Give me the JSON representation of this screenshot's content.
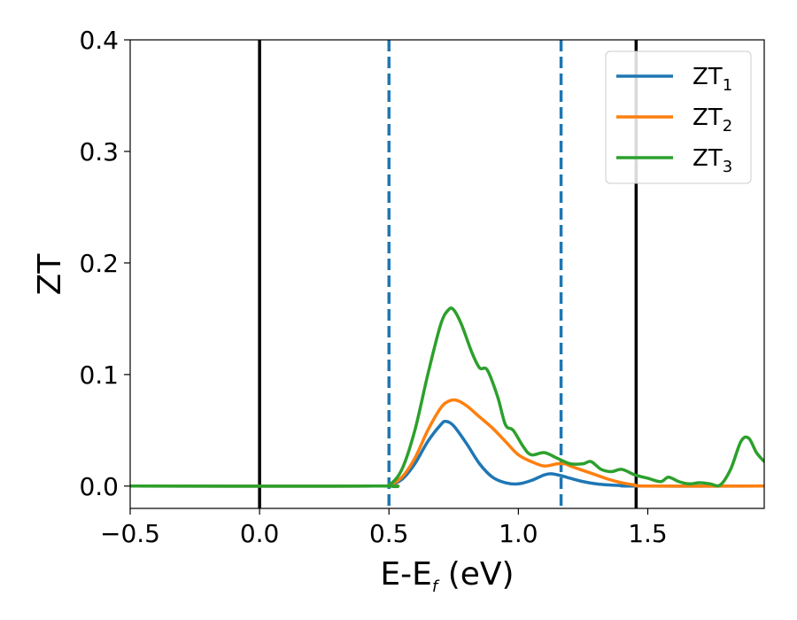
{
  "chart_data": {
    "type": "line",
    "xlabel": "E-E",
    "xlabel_sub": "f",
    "xlabel_unit": " (eV)",
    "ylabel": "ZT",
    "xlim": [
      -0.5,
      1.95
    ],
    "ylim": [
      -0.02,
      0.4
    ],
    "x_ticks": [
      -0.5,
      0.0,
      0.5,
      1.0,
      1.5
    ],
    "x_tick_labels": [
      "−0.5",
      "0.0",
      "0.5",
      "1.0",
      "1.5"
    ],
    "y_ticks": [
      0.0,
      0.1,
      0.2,
      0.3,
      0.4
    ],
    "y_tick_labels": [
      "0.0",
      "0.1",
      "0.2",
      "0.3",
      "0.4"
    ],
    "grid": false,
    "legend_position": "top-right",
    "vertical_lines": [
      {
        "x": 0.0,
        "style": "solid",
        "color": "#000000"
      },
      {
        "x": 0.5,
        "style": "dashed",
        "color": "#1f77b4"
      },
      {
        "x": 1.165,
        "style": "dashed",
        "color": "#1f77b4"
      },
      {
        "x": 1.455,
        "style": "solid",
        "color": "#000000"
      }
    ],
    "series": [
      {
        "name": "ZT",
        "name_sub": "1",
        "color": "#1f77b4",
        "x": [
          -0.5,
          0.45,
          0.5,
          0.55,
          0.6,
          0.65,
          0.7,
          0.72,
          0.75,
          0.8,
          0.85,
          0.9,
          0.95,
          1.0,
          1.05,
          1.1,
          1.13,
          1.17,
          1.2,
          1.25,
          1.3,
          1.35,
          1.4,
          1.45,
          1.95
        ],
        "y": [
          0.0,
          0.0,
          0.001,
          0.006,
          0.02,
          0.04,
          0.055,
          0.058,
          0.054,
          0.038,
          0.02,
          0.008,
          0.003,
          0.002,
          0.005,
          0.01,
          0.011,
          0.009,
          0.007,
          0.004,
          0.002,
          0.001,
          0.0005,
          0.0,
          0.0
        ]
      },
      {
        "name": "ZT",
        "name_sub": "2",
        "color": "#ff7f0e",
        "x": [
          -0.5,
          0.45,
          0.5,
          0.55,
          0.6,
          0.65,
          0.7,
          0.73,
          0.76,
          0.8,
          0.85,
          0.9,
          0.95,
          1.0,
          1.05,
          1.1,
          1.15,
          1.18,
          1.2,
          1.25,
          1.3,
          1.35,
          1.4,
          1.45,
          1.5,
          1.95
        ],
        "y": [
          0.0,
          0.0,
          0.001,
          0.008,
          0.025,
          0.05,
          0.07,
          0.076,
          0.077,
          0.072,
          0.062,
          0.052,
          0.04,
          0.028,
          0.022,
          0.018,
          0.02,
          0.02,
          0.018,
          0.014,
          0.01,
          0.006,
          0.003,
          0.001,
          0.0,
          0.0
        ]
      },
      {
        "name": "ZT",
        "name_sub": "3",
        "color": "#2ca02c",
        "x": [
          -0.5,
          0.45,
          0.5,
          0.55,
          0.6,
          0.65,
          0.7,
          0.73,
          0.75,
          0.78,
          0.82,
          0.85,
          0.88,
          0.92,
          0.95,
          0.98,
          1.02,
          1.05,
          1.1,
          1.15,
          1.2,
          1.25,
          1.28,
          1.32,
          1.36,
          1.4,
          1.45,
          1.5,
          1.55,
          1.58,
          1.62,
          1.66,
          1.7,
          1.74,
          1.78,
          1.82,
          1.86,
          1.89,
          1.92,
          1.95
        ],
        "y": [
          0.0,
          0.0,
          0.001,
          0.015,
          0.05,
          0.1,
          0.145,
          0.158,
          0.158,
          0.145,
          0.12,
          0.106,
          0.104,
          0.08,
          0.055,
          0.05,
          0.035,
          0.028,
          0.03,
          0.025,
          0.02,
          0.02,
          0.022,
          0.015,
          0.013,
          0.015,
          0.01,
          0.007,
          0.004,
          0.008,
          0.004,
          0.002,
          0.003,
          0.002,
          0.001,
          0.015,
          0.04,
          0.043,
          0.03,
          0.022
        ]
      }
    ]
  }
}
